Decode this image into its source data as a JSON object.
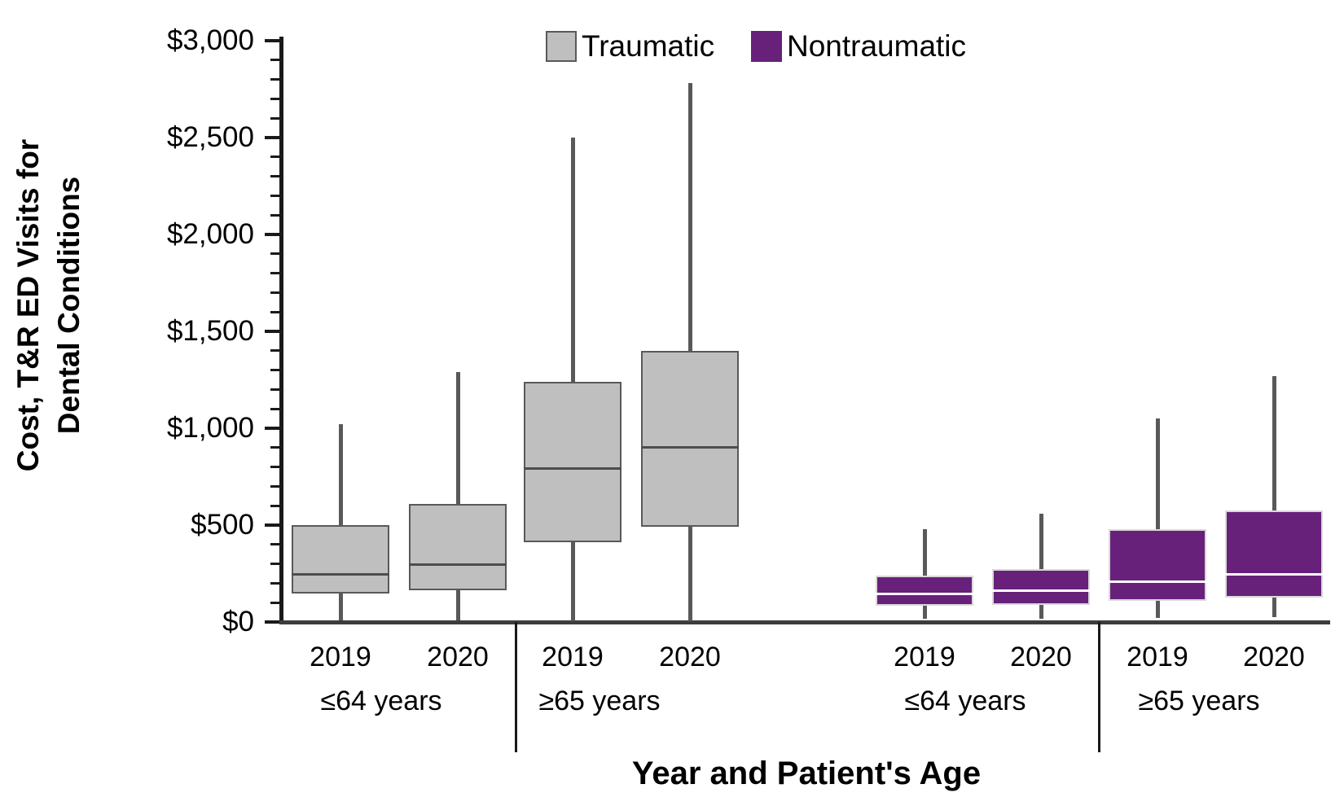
{
  "legend": {
    "items": [
      {
        "label": "Traumatic",
        "color": "#bfbfbf",
        "border": "#595959"
      },
      {
        "label": "Nontraumatic",
        "color": "#67217a",
        "border": "#67217a"
      }
    ]
  },
  "y_axis": {
    "title": "Cost, T&R ED Visits for Dental Conditions",
    "title_lines": [
      "Cost, T&R ED Visits for",
      "Dental Conditions"
    ],
    "range": [
      0,
      3000
    ],
    "major_tick_interval": 500,
    "minor_tick_interval": 100,
    "ticks": [
      {
        "value": 0,
        "label": "$0"
      },
      {
        "value": 500,
        "label": "$500"
      },
      {
        "value": 1000,
        "label": "$1,000"
      },
      {
        "value": 1500,
        "label": "$1,500"
      },
      {
        "value": 2000,
        "label": "$2,000"
      },
      {
        "value": 2500,
        "label": "$2,500"
      },
      {
        "value": 3000,
        "label": "$3,000"
      }
    ]
  },
  "x_axis": {
    "title": "Year and Patient's Age"
  },
  "chart_data": {
    "type": "boxplot",
    "title": "",
    "xlabel": "Year and Patient's Age",
    "ylabel": "Cost, T&R ED Visits for Dental Conditions",
    "ylim": [
      0,
      3000
    ],
    "grid": false,
    "legend_position": "top-center",
    "whisker_color": "#595959",
    "series": [
      {
        "name": "Traumatic",
        "fill": "#bfbfbf",
        "border": "#595959",
        "median_line": "#4d4d4d",
        "boxes": [
          {
            "group": "≤64 years",
            "year": "2019",
            "whisker_low": 10,
            "q1": 145,
            "median": 245,
            "q3": 500,
            "whisker_high": 1020
          },
          {
            "group": "≤64 years",
            "year": "2020",
            "whisker_low": 10,
            "q1": 165,
            "median": 295,
            "q3": 610,
            "whisker_high": 1290
          },
          {
            "group": "≥65 years",
            "year": "2019",
            "whisker_low": 5,
            "q1": 410,
            "median": 790,
            "q3": 1240,
            "whisker_high": 2500
          },
          {
            "group": "≥65 years",
            "year": "2020",
            "whisker_low": 5,
            "q1": 490,
            "median": 900,
            "q3": 1400,
            "whisker_high": 2780
          }
        ]
      },
      {
        "name": "Nontraumatic",
        "fill": "#67217a",
        "border": "#d9d9d9",
        "median_line": "#ffffff",
        "boxes": [
          {
            "group": "≤64 years",
            "year": "2019",
            "whisker_low": 15,
            "q1": 85,
            "median": 145,
            "q3": 240,
            "whisker_high": 480
          },
          {
            "group": "≤64 years",
            "year": "2020",
            "whisker_low": 15,
            "q1": 90,
            "median": 160,
            "q3": 275,
            "whisker_high": 560
          },
          {
            "group": "≥65 years",
            "year": "2019",
            "whisker_low": 20,
            "q1": 110,
            "median": 210,
            "q3": 480,
            "whisker_high": 1050
          },
          {
            "group": "≥65 years",
            "year": "2020",
            "whisker_low": 25,
            "q1": 125,
            "median": 245,
            "q3": 575,
            "whisker_high": 1270
          }
        ]
      }
    ]
  }
}
